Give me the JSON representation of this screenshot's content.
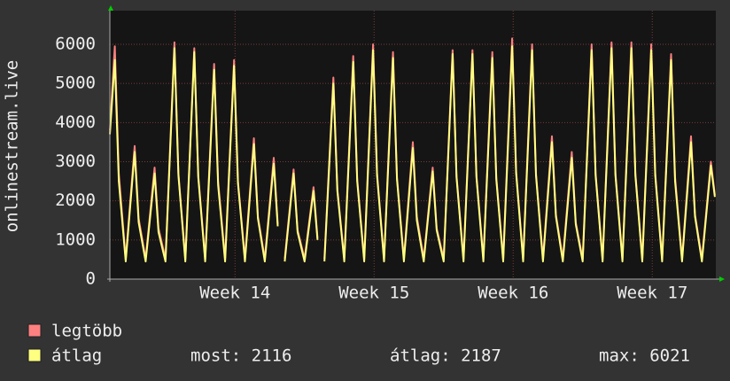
{
  "chart_data": {
    "type": "line",
    "ylabel": "onlinestream.live",
    "xlim": [
      0,
      30.5
    ],
    "ylim": [
      0,
      6860
    ],
    "yticks": [
      0,
      1000,
      2000,
      3000,
      4000,
      5000,
      6000
    ],
    "xticks": [
      {
        "value": 6.3,
        "label": "Week 14"
      },
      {
        "value": 13.3,
        "label": "Week 15"
      },
      {
        "value": 20.3,
        "label": "Week 16"
      },
      {
        "value": 27.3,
        "label": "Week 17"
      }
    ],
    "grid": true,
    "x": [
      0,
      0.25,
      0.45,
      0.8,
      1.25,
      1.45,
      1.8,
      2.25,
      2.45,
      2.8,
      3.25,
      3.45,
      3.8,
      4.25,
      4.45,
      4.8,
      5.25,
      5.45,
      5.8,
      6.25,
      6.45,
      6.8,
      7.25,
      7.45,
      7.8,
      8.25,
      8.45,
      8.6,
      8.8,
      9.25,
      9.45,
      9.8,
      10.25,
      10.45,
      10.6,
      10.8,
      11.25,
      11.45,
      11.8,
      12.25,
      12.45,
      12.8,
      13.25,
      13.45,
      13.8,
      14.25,
      14.45,
      14.8,
      15.25,
      15.45,
      15.8,
      16.25,
      16.45,
      16.8,
      17.25,
      17.45,
      17.8,
      18.25,
      18.45,
      18.8,
      19.25,
      19.45,
      19.8,
      20.25,
      20.45,
      20.8,
      21.25,
      21.45,
      21.8,
      22.25,
      22.45,
      22.8,
      23.25,
      23.45,
      23.8,
      24.25,
      24.45,
      24.8,
      25.25,
      25.45,
      25.8,
      26.25,
      26.45,
      26.8,
      27.25,
      27.45,
      27.8,
      28.25,
      28.45,
      28.8,
      29.25,
      29.45,
      29.8,
      30.25,
      30.45
    ],
    "series": [
      {
        "name": "legtöbb",
        "color": "#ff8080",
        "values": [
          3800,
          5950,
          2700,
          520,
          3400,
          1550,
          520,
          2850,
          1300,
          520,
          6050,
          2700,
          520,
          5900,
          2650,
          520,
          5500,
          2500,
          520,
          5600,
          2500,
          520,
          3600,
          1600,
          520,
          3100,
          1400,
          null,
          520,
          2800,
          1250,
          520,
          2350,
          1050,
          null,
          520,
          5150,
          2300,
          520,
          5700,
          2550,
          520,
          6000,
          2700,
          520,
          5800,
          2600,
          520,
          3500,
          1600,
          520,
          2850,
          1300,
          520,
          5850,
          2650,
          520,
          5850,
          2650,
          520,
          5800,
          2600,
          520,
          6150,
          2750,
          520,
          6000,
          2700,
          520,
          3650,
          1650,
          520,
          3250,
          1450,
          520,
          6000,
          2700,
          520,
          6050,
          2700,
          520,
          6050,
          2700,
          520,
          6000,
          2700,
          520,
          5750,
          2600,
          520,
          3650,
          1650,
          520,
          3000,
          2150
        ]
      },
      {
        "name": "átlag",
        "color": "#ffff80",
        "values": [
          3700,
          5600,
          2500,
          450,
          3250,
          1450,
          450,
          2700,
          1200,
          450,
          5900,
          2650,
          450,
          5800,
          2600,
          450,
          5350,
          2400,
          450,
          5450,
          2450,
          450,
          3450,
          1550,
          450,
          2950,
          1350,
          null,
          450,
          2700,
          1200,
          450,
          2250,
          1000,
          null,
          450,
          5000,
          2250,
          450,
          5550,
          2500,
          450,
          5850,
          2650,
          450,
          5650,
          2550,
          450,
          3350,
          1500,
          450,
          2750,
          1250,
          450,
          5750,
          2600,
          450,
          5750,
          2600,
          450,
          5650,
          2550,
          450,
          5950,
          2700,
          450,
          5850,
          2650,
          450,
          3500,
          1600,
          450,
          3100,
          1400,
          450,
          5850,
          2650,
          450,
          5900,
          2650,
          450,
          5900,
          2650,
          450,
          5850,
          2650,
          450,
          5600,
          2500,
          450,
          3500,
          1600,
          450,
          2900,
          2100
        ]
      }
    ],
    "stats": [
      "most: 2116",
      "átlag: 2187",
      "max: 6021"
    ]
  }
}
